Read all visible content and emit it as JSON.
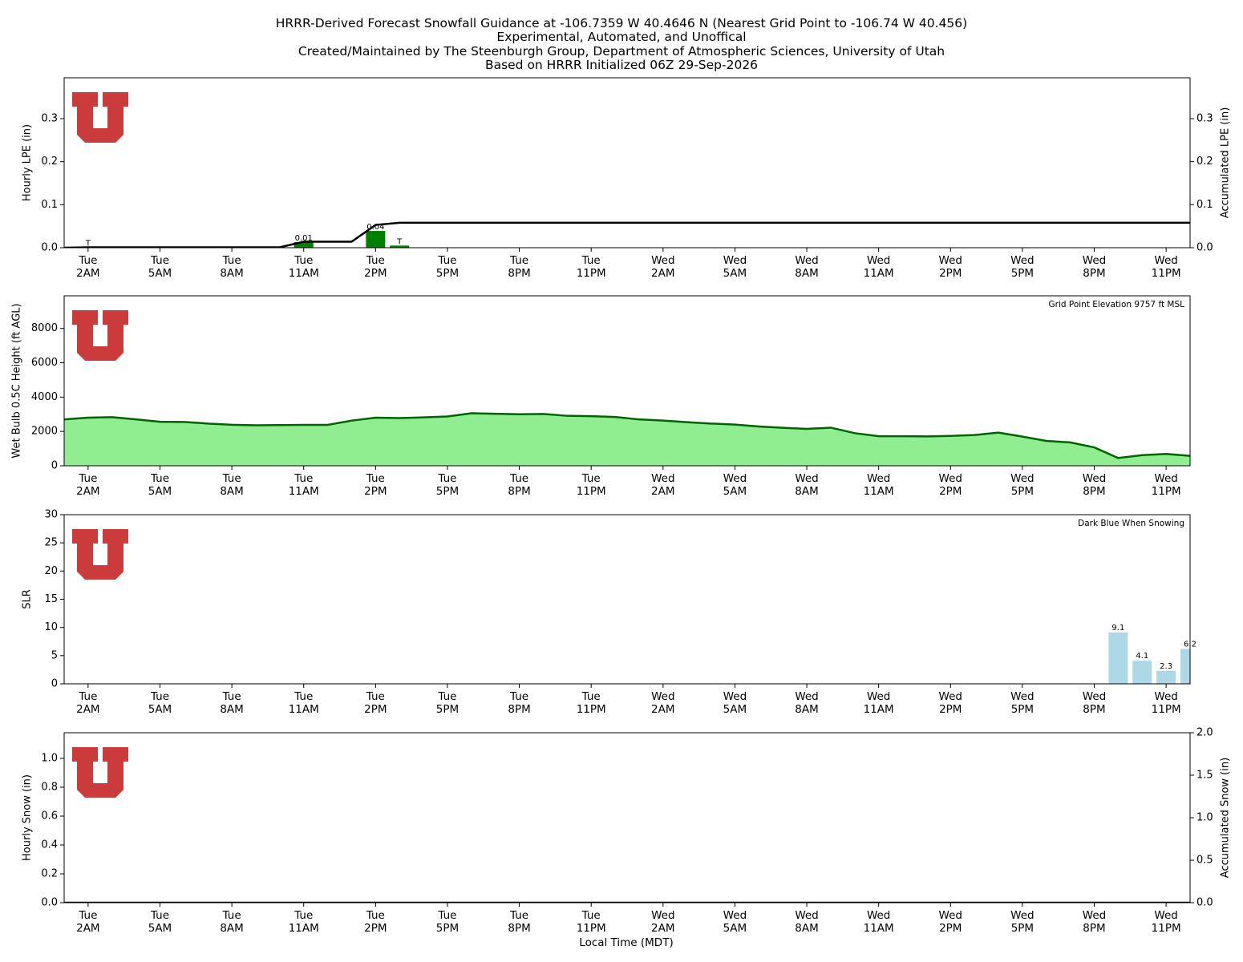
{
  "title": [
    "HRRR-Derived Forecast Snowfall Guidance at -106.7359 W 40.4646 N (Nearest Grid Point to -106.74 W 40.456)",
    "Experimental, Automated, and Unoffical",
    "Created/Maintained by The Steenburgh Group, Department of Atmospheric Sciences, University of Utah",
    "Based on HRRR Initialized 06Z 29-Sep-2026"
  ],
  "chart_data": [
    {
      "type": "bar",
      "ylabel": "Hourly LPE (in)",
      "y2label": "Accumulated LPE (in)",
      "categories": [
        null,
        "Tue\n2AM",
        null,
        null,
        "Tue\n5AM",
        null,
        null,
        "Tue\n8AM",
        null,
        null,
        "Tue\n11AM",
        null,
        null,
        "Tue\n2PM",
        null,
        null,
        "Tue\n5PM",
        null,
        null,
        "Tue\n8PM",
        null,
        null,
        "Tue\n11PM",
        null,
        null,
        "Wed\n2AM",
        null,
        null,
        "Wed\n5AM",
        null,
        null,
        "Wed\n8AM",
        null,
        null,
        "Wed\n11AM",
        null,
        null,
        "Wed\n2PM",
        null,
        null,
        "Wed\n5PM",
        null,
        null,
        "Wed\n8PM",
        null,
        null,
        "Wed\n11PM",
        null
      ],
      "ylim": [
        0,
        0.395
      ],
      "yticks": [
        {
          "value": 0,
          "label": "0.0"
        },
        0.1,
        0.2,
        0.3
      ],
      "y2lim": [
        0,
        0.395
      ],
      "y2ticks": [
        {
          "value": 0,
          "label": "0.0"
        },
        0.1,
        0.2,
        0.3
      ],
      "series": [
        {
          "type": "bar",
          "color": "#008000",
          "values": [
            0,
            0.001,
            0,
            0,
            0,
            0,
            0,
            0,
            0,
            0,
            0.013,
            0,
            0,
            0.039,
            0.005,
            0,
            0,
            0,
            0,
            0,
            0,
            0,
            0,
            0,
            0,
            0,
            0,
            0,
            0,
            0,
            0,
            0,
            0,
            0,
            0,
            0,
            0,
            0,
            0,
            0,
            0,
            0,
            0,
            0,
            0,
            0,
            0,
            0
          ],
          "value_labels": [
            null,
            "T",
            null,
            null,
            null,
            null,
            null,
            null,
            null,
            null,
            "0.01",
            null,
            null,
            "0.04",
            "T",
            null,
            null,
            null,
            null,
            null,
            null,
            null,
            null,
            null,
            null,
            null,
            null,
            null,
            null,
            null,
            null,
            null,
            null,
            null,
            null,
            null,
            null,
            null,
            null,
            null,
            null,
            null,
            null,
            null,
            null,
            null,
            null,
            null
          ]
        },
        {
          "type": "line",
          "axis": "y2",
          "color": "#000000",
          "values": [
            0,
            0.001,
            0.001,
            0.001,
            0.001,
            0.001,
            0.001,
            0.001,
            0.001,
            0.001,
            0.014,
            0.014,
            0.014,
            0.053,
            0.058,
            0.058,
            0.058,
            0.058,
            0.058,
            0.058,
            0.058,
            0.058,
            0.058,
            0.058,
            0.058,
            0.058,
            0.058,
            0.058,
            0.058,
            0.058,
            0.058,
            0.058,
            0.058,
            0.058,
            0.058,
            0.058,
            0.058,
            0.058,
            0.058,
            0.058,
            0.058,
            0.058,
            0.058,
            0.058,
            0.058,
            0.058,
            0.058,
            0.058
          ]
        }
      ]
    },
    {
      "type": "area",
      "ylabel": "Wet Bulb 0.5C Height (ft AGL)",
      "annotation": "Grid Point Elevation 9757 ft MSL",
      "categories": [
        null,
        "Tue\n2AM",
        null,
        null,
        "Tue\n5AM",
        null,
        null,
        "Tue\n8AM",
        null,
        null,
        "Tue\n11AM",
        null,
        null,
        "Tue\n2PM",
        null,
        null,
        "Tue\n5PM",
        null,
        null,
        "Tue\n8PM",
        null,
        null,
        "Tue\n11PM",
        null,
        null,
        "Wed\n2AM",
        null,
        null,
        "Wed\n5AM",
        null,
        null,
        "Wed\n8AM",
        null,
        null,
        "Wed\n11AM",
        null,
        null,
        "Wed\n2PM",
        null,
        null,
        "Wed\n5PM",
        null,
        null,
        "Wed\n8PM",
        null,
        null,
        "Wed\n11PM",
        null
      ],
      "ylim": [
        0,
        9900
      ],
      "yticks": [
        0,
        2000,
        4000,
        6000,
        8000
      ],
      "series": [
        {
          "type": "area",
          "color": "#90ee90",
          "edgecolor": "#006400",
          "values": [
            2700,
            2800,
            2830,
            2700,
            2560,
            2550,
            2460,
            2390,
            2360,
            2370,
            2380,
            2380,
            2630,
            2800,
            2780,
            2820,
            2870,
            3060,
            3030,
            3000,
            3020,
            2910,
            2890,
            2840,
            2700,
            2630,
            2540,
            2460,
            2400,
            2290,
            2210,
            2150,
            2220,
            1900,
            1720,
            1720,
            1710,
            1740,
            1790,
            1930,
            1700,
            1450,
            1360,
            1070,
            450,
            620,
            690,
            580
          ]
        }
      ]
    },
    {
      "type": "bar",
      "ylabel": "SLR",
      "annotation": "Dark Blue When Snowing",
      "data_labels": true,
      "categories": [
        null,
        "Tue\n2AM",
        null,
        null,
        "Tue\n5AM",
        null,
        null,
        "Tue\n8AM",
        null,
        null,
        "Tue\n11AM",
        null,
        null,
        "Tue\n2PM",
        null,
        null,
        "Tue\n5PM",
        null,
        null,
        "Tue\n8PM",
        null,
        null,
        "Tue\n11PM",
        null,
        null,
        "Wed\n2AM",
        null,
        null,
        "Wed\n5AM",
        null,
        null,
        "Wed\n8AM",
        null,
        null,
        "Wed\n11AM",
        null,
        null,
        "Wed\n2PM",
        null,
        null,
        "Wed\n5PM",
        null,
        null,
        "Wed\n8PM",
        null,
        null,
        "Wed\n11PM",
        null
      ],
      "ylim": [
        0,
        30
      ],
      "yticks": [
        0,
        5,
        10,
        15,
        20,
        25,
        30
      ],
      "series": [
        {
          "type": "bar",
          "color": "#add8e6",
          "values": [
            null,
            null,
            null,
            null,
            null,
            null,
            null,
            null,
            null,
            null,
            null,
            null,
            null,
            null,
            null,
            null,
            null,
            null,
            null,
            null,
            null,
            null,
            null,
            null,
            null,
            null,
            null,
            null,
            null,
            null,
            null,
            null,
            null,
            null,
            null,
            null,
            null,
            null,
            null,
            null,
            null,
            null,
            null,
            null,
            9.1,
            4.1,
            2.3,
            6.2
          ]
        }
      ]
    },
    {
      "type": "bar",
      "ylabel": "Hourly Snow (in)",
      "y2label": "Accumulated Snow (in)",
      "xlabel": "Local Time (MDT)",
      "categories": [
        null,
        "Tue\n2AM",
        null,
        null,
        "Tue\n5AM",
        null,
        null,
        "Tue\n8AM",
        null,
        null,
        "Tue\n11AM",
        null,
        null,
        "Tue\n2PM",
        null,
        null,
        "Tue\n5PM",
        null,
        null,
        "Tue\n8PM",
        null,
        null,
        "Tue\n11PM",
        null,
        null,
        "Wed\n2AM",
        null,
        null,
        "Wed\n5AM",
        null,
        null,
        "Wed\n8AM",
        null,
        null,
        "Wed\n11AM",
        null,
        null,
        "Wed\n2PM",
        null,
        null,
        "Wed\n5PM",
        null,
        null,
        "Wed\n8PM",
        null,
        null,
        "Wed\n11PM",
        null
      ],
      "ylim": [
        0,
        1.178
      ],
      "yticks": [
        {
          "value": 0,
          "label": "0.0"
        },
        0.2,
        0.4,
        0.6,
        0.8,
        {
          "value": 1,
          "label": "1.0"
        }
      ],
      "y2lim": [
        0,
        2
      ],
      "y2ticks": [
        {
          "value": 0,
          "label": "0.0"
        },
        0.5,
        {
          "value": 1,
          "label": "1.0"
        },
        1.5,
        {
          "value": 2,
          "label": "2.0"
        }
      ],
      "series": [
        {
          "type": "bar",
          "color": "#0000ff",
          "values": [
            0,
            0,
            0,
            0,
            0,
            0,
            0,
            0,
            0,
            0,
            0,
            0,
            0,
            0,
            0,
            0,
            0,
            0,
            0,
            0,
            0,
            0,
            0,
            0,
            0,
            0,
            0,
            0,
            0,
            0,
            0,
            0,
            0,
            0,
            0,
            0,
            0,
            0,
            0,
            0,
            0,
            0,
            0,
            0,
            0,
            0,
            0,
            0
          ]
        },
        {
          "type": "line",
          "axis": "y2",
          "color": "#000000",
          "values": [
            0,
            0,
            0,
            0,
            0,
            0,
            0,
            0,
            0,
            0,
            0,
            0,
            0,
            0,
            0,
            0,
            0,
            0,
            0,
            0,
            0,
            0,
            0,
            0,
            0,
            0,
            0,
            0,
            0,
            0,
            0,
            0,
            0,
            0,
            0,
            0,
            0,
            0,
            0,
            0,
            0,
            0,
            0,
            0,
            0,
            0,
            0,
            0
          ]
        }
      ]
    }
  ]
}
